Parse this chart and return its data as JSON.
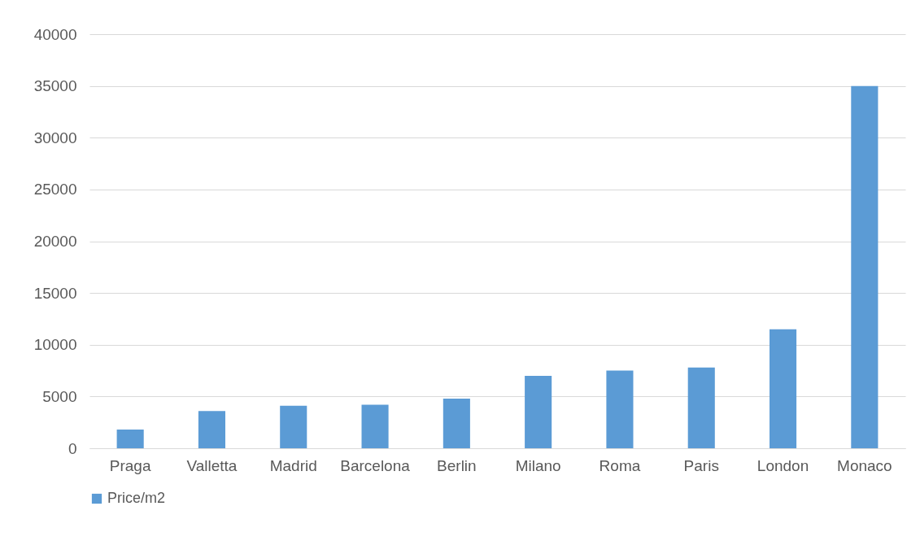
{
  "chart_data": {
    "type": "bar",
    "categories": [
      "Praga",
      "Valletta",
      "Madrid",
      "Barcelona",
      "Berlin",
      "Milano",
      "Roma",
      "Paris",
      "London",
      "Monaco"
    ],
    "series": [
      {
        "name": "Price/m2",
        "color": "#5b9bd5",
        "values": [
          1800,
          3600,
          4100,
          4200,
          4800,
          7000,
          7500,
          7800,
          11500,
          35000
        ]
      }
    ],
    "ylim": [
      0,
      40000
    ],
    "yticks": [
      0,
      5000,
      10000,
      15000,
      20000,
      25000,
      30000,
      35000,
      40000
    ],
    "grid": "y",
    "legend": "bottom"
  }
}
